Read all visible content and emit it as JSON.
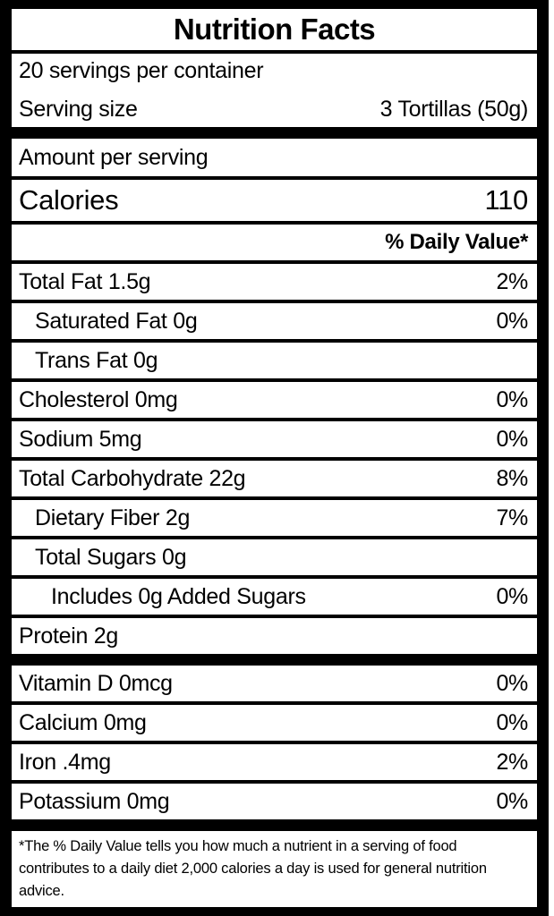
{
  "label": {
    "title": "Nutrition Facts",
    "servings_per_container": "20 servings per container",
    "serving_size_label": "Serving size",
    "serving_size_value": "3 Tortillas (50g)",
    "amount_per_serving": "Amount per serving",
    "calories_label": "Calories",
    "calories_value": "110",
    "daily_value_header": "% Daily Value*",
    "nutrients": [
      {
        "name": "Total Fat 1.5g",
        "dv": "2%",
        "indent": 0
      },
      {
        "name": "Saturated Fat 0g",
        "dv": "0%",
        "indent": 1
      },
      {
        "name": "Trans Fat 0g",
        "dv": "",
        "indent": 1
      },
      {
        "name": "Cholesterol 0mg",
        "dv": "0%",
        "indent": 0
      },
      {
        "name": "Sodium 5mg",
        "dv": "0%",
        "indent": 0
      },
      {
        "name": "Total Carbohydrate 22g",
        "dv": "8%",
        "indent": 0
      },
      {
        "name": "Dietary Fiber 2g",
        "dv": "7%",
        "indent": 1
      },
      {
        "name": "Total Sugars 0g",
        "dv": "",
        "indent": 1
      },
      {
        "name": "Includes 0g Added Sugars",
        "dv": "0%",
        "indent": 2
      },
      {
        "name": "Protein 2g",
        "dv": "",
        "indent": 0
      }
    ],
    "vitamins": [
      {
        "name": "Vitamin D 0mcg",
        "dv": "0%"
      },
      {
        "name": "Calcium 0mg",
        "dv": "0%"
      },
      {
        "name": "Iron .4mg",
        "dv": "2%"
      },
      {
        "name": "Potassium 0mg",
        "dv": "0%"
      }
    ],
    "footnote": "*The % Daily Value tells you how much a nutrient in a serving of food contributes to a daily diet 2,000 calories a day is used for general nutrition advice.",
    "colors": {
      "frame": "#000000",
      "row_background": "#ffffff",
      "text": "#000000"
    }
  }
}
